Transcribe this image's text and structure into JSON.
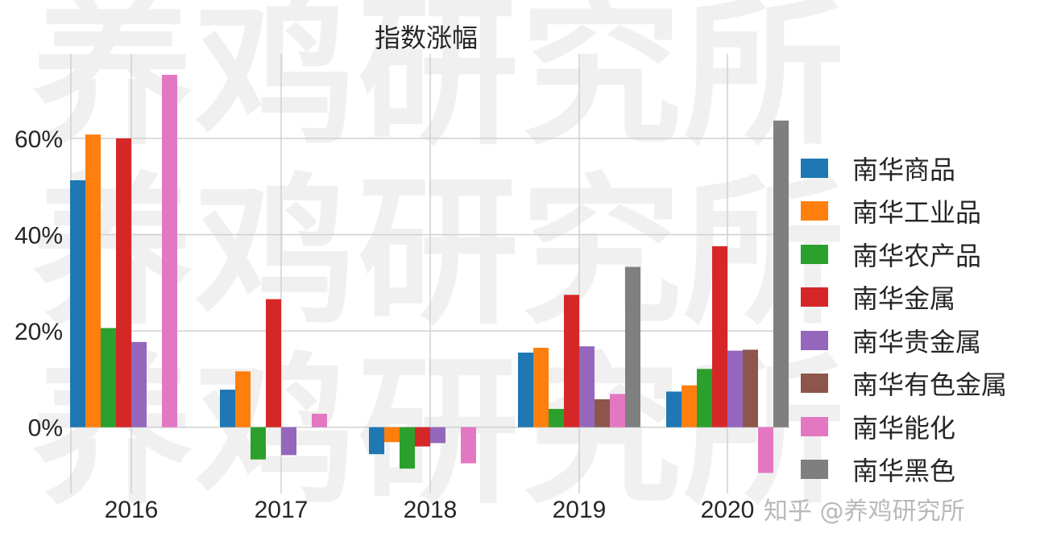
{
  "chart_data": {
    "type": "bar",
    "title": "指数涨幅",
    "xlabel": "",
    "ylabel": "",
    "categories": [
      "2016",
      "2017",
      "2018",
      "2019",
      "2020"
    ],
    "ylim": [
      -13.8,
      77.5
    ],
    "yticks": [
      0,
      20,
      40,
      60
    ],
    "ytick_labels": [
      "0%",
      "20%",
      "40%",
      "60%"
    ],
    "grid": true,
    "legend_position": "right",
    "series": [
      {
        "name": "南华商品",
        "color": "#1f77b4",
        "values": [
          51.3,
          7.8,
          -5.6,
          15.5,
          7.4
        ]
      },
      {
        "name": "南华工业品",
        "color": "#ff7f0e",
        "values": [
          60.8,
          11.6,
          -3.1,
          16.5,
          8.7
        ]
      },
      {
        "name": "南华农产品",
        "color": "#2ca02c",
        "values": [
          20.6,
          -6.7,
          -8.6,
          3.8,
          12.1
        ]
      },
      {
        "name": "南华金属",
        "color": "#d62728",
        "values": [
          60.0,
          26.6,
          -4.0,
          27.5,
          37.6
        ]
      },
      {
        "name": "南华贵金属",
        "color": "#9467bd",
        "values": [
          17.7,
          -5.8,
          -3.3,
          16.8,
          15.9
        ]
      },
      {
        "name": "南华有色金属",
        "color": "#8c564b",
        "values": [
          null,
          null,
          null,
          5.8,
          16.1
        ]
      },
      {
        "name": "南华能化",
        "color": "#e377c2",
        "values": [
          73.2,
          2.8,
          -7.5,
          6.9,
          -9.5
        ]
      },
      {
        "name": "南华黑色",
        "color": "#7f7f7f",
        "values": [
          null,
          null,
          null,
          33.3,
          63.7
        ]
      }
    ]
  },
  "watermark": {
    "text": "养鸡研究所",
    "credit": "知乎 @养鸡研究所"
  }
}
